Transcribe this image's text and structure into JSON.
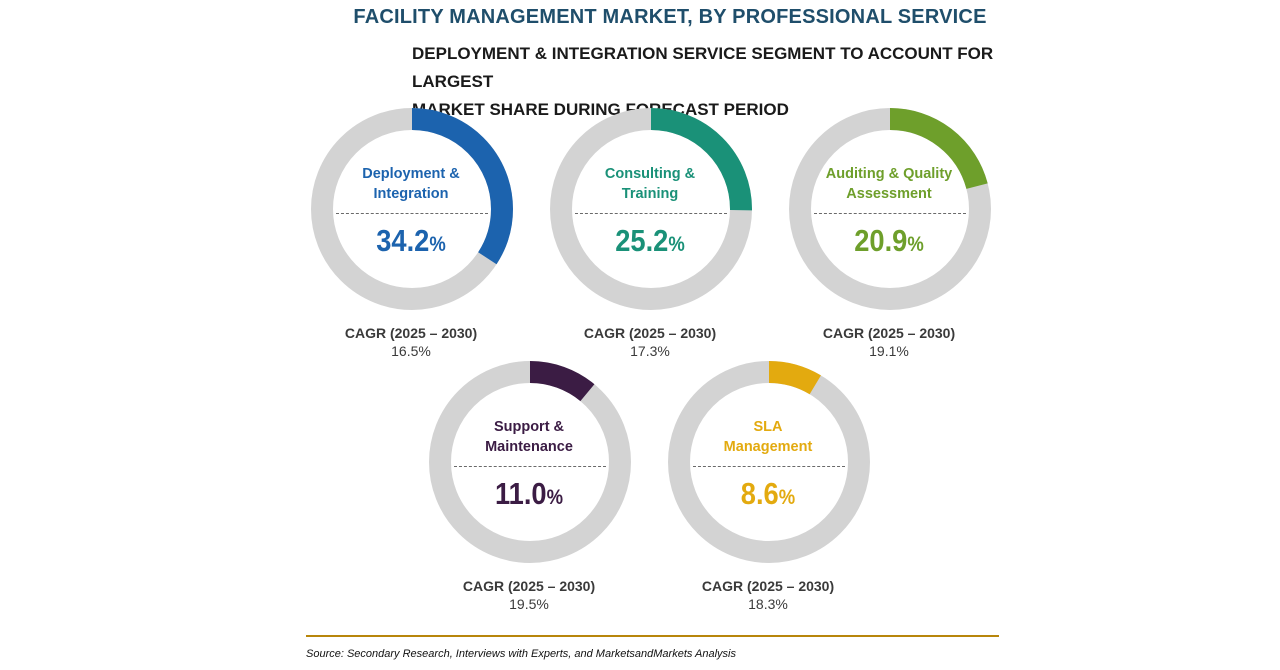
{
  "title": "FACILITY MANAGEMENT MARKET, BY PROFESSIONAL SERVICE",
  "subtitle_line1": "DEPLOYMENT & INTEGRATION SERVICE SEGMENT TO ACCOUNT FOR LARGEST",
  "subtitle_line2": "MARKET SHARE DURING FORECAST PERIOD",
  "source": "Source: Secondary Research, Interviews with Experts, and MarketsandMarkets Analysis",
  "track_color": "#d3d3d3",
  "chart_data": {
    "type": "pie",
    "value_unit": "%",
    "cagr_label": "CAGR (2025 – 2030)",
    "segments": [
      {
        "name_line1": "Deployment &",
        "name_line2": "Integration",
        "share": 34.2,
        "share_text": "34.2",
        "cagr": "16.5%",
        "color": "#1c63ae"
      },
      {
        "name_line1": "Consulting &",
        "name_line2": "Training",
        "share": 25.2,
        "share_text": "25.2",
        "cagr": "17.3%",
        "color": "#1a9178"
      },
      {
        "name_line1": "Auditing & Quality",
        "name_line2": "Assessment",
        "share": 20.9,
        "share_text": "20.9",
        "cagr": "19.1%",
        "color": "#6e9f2b"
      },
      {
        "name_line1": "Support &",
        "name_line2": "Maintenance",
        "share": 11.0,
        "share_text": "11.0",
        "cagr": "19.5%",
        "color": "#3b1c44"
      },
      {
        "name_line1": "SLA",
        "name_line2": "Management",
        "share": 8.6,
        "share_text": "8.6",
        "cagr": "18.3%",
        "color": "#e3aa0f"
      }
    ]
  }
}
